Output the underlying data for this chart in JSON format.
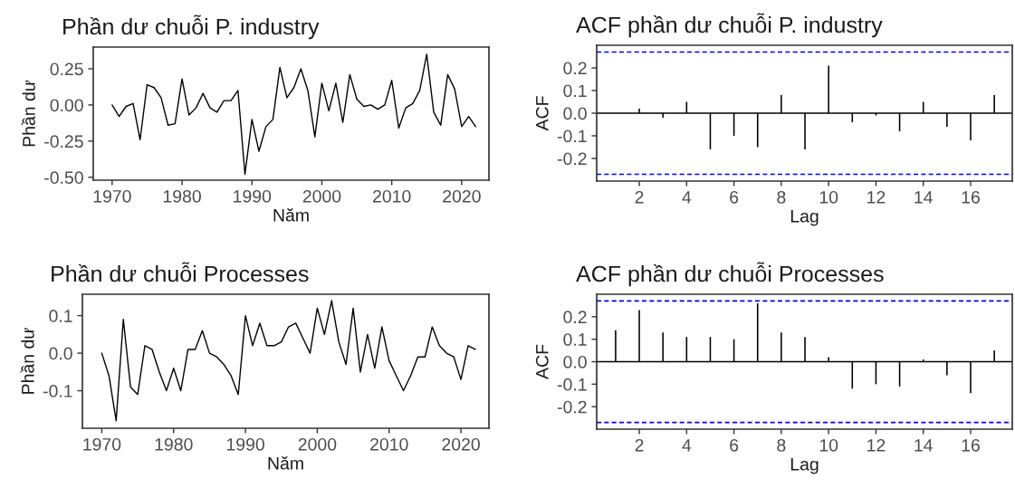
{
  "chart_data": [
    {
      "type": "line",
      "title": "Phần dư chuỗi P. industry",
      "xlabel": "Năm",
      "ylabel": "Phần dư",
      "xlim": [
        1967.3,
        2023.9
      ],
      "ylim": [
        -0.52,
        0.4
      ],
      "xticks": [
        1970,
        1980,
        1990,
        2000,
        2010,
        2020
      ],
      "yticks": [
        {
          "value": 0.25,
          "label": "0.25"
        },
        {
          "value": 0,
          "label": "0.00"
        },
        {
          "value": -0.25,
          "label": "-0.25"
        },
        {
          "value": -0.5,
          "label": "-0.50"
        }
      ],
      "grid": false,
      "legend": false,
      "x": [
        1970,
        1971,
        1972,
        1973,
        1974,
        1975,
        1976,
        1977,
        1978,
        1979,
        1980,
        1981,
        1982,
        1983,
        1984,
        1985,
        1986,
        1987,
        1988,
        1989,
        1990,
        1991,
        1992,
        1993,
        1994,
        1995,
        1996,
        1997,
        1998,
        1999,
        2000,
        2001,
        2002,
        2003,
        2004,
        2005,
        2006,
        2007,
        2008,
        2009,
        2010,
        2011,
        2012,
        2013,
        2014,
        2015,
        2016,
        2017,
        2018,
        2019,
        2020,
        2021,
        2022
      ],
      "series": [
        {
          "color": "#000000",
          "values": [
            0.0,
            -0.08,
            -0.01,
            0.01,
            -0.24,
            0.14,
            0.12,
            0.05,
            -0.14,
            -0.13,
            0.18,
            -0.07,
            -0.02,
            0.08,
            -0.02,
            -0.05,
            0.03,
            0.03,
            0.1,
            -0.48,
            -0.1,
            -0.32,
            -0.15,
            -0.1,
            0.26,
            0.05,
            0.12,
            0.25,
            0.1,
            -0.22,
            0.15,
            -0.04,
            0.15,
            -0.12,
            0.21,
            0.04,
            -0.01,
            0.0,
            -0.03,
            0.0,
            0.17,
            -0.16,
            -0.02,
            0.01,
            0.1,
            0.35,
            -0.05,
            -0.14,
            0.21,
            0.11,
            -0.15,
            -0.08,
            -0.15
          ]
        }
      ]
    },
    {
      "type": "bar",
      "title": "ACF phần dư chuỗi P. industry",
      "xlabel": "Lag",
      "ylabel": "ACF",
      "xlim": [
        0.2,
        17.76
      ],
      "ylim": [
        -0.3,
        0.3
      ],
      "xticks": [
        2,
        4,
        6,
        8,
        10,
        12,
        14,
        16
      ],
      "yticks": [
        {
          "value": 0.2,
          "label": "0.2"
        },
        {
          "value": 0.1,
          "label": "0.1"
        },
        {
          "value": 0,
          "label": "0.0"
        },
        {
          "value": -0.1,
          "label": "-0.1"
        },
        {
          "value": -0.2,
          "label": "-0.2"
        }
      ],
      "grid": false,
      "legend": false,
      "x": [
        1,
        2,
        3,
        4,
        5,
        6,
        7,
        8,
        9,
        10,
        11,
        12,
        13,
        14,
        15,
        16,
        17
      ],
      "series": [
        {
          "color": "#000000",
          "values": [
            0.0,
            0.02,
            -0.02,
            0.05,
            -0.16,
            -0.1,
            -0.15,
            0.08,
            -0.16,
            0.21,
            -0.04,
            -0.01,
            -0.08,
            0.05,
            -0.06,
            -0.12,
            0.08
          ]
        }
      ],
      "ref_lines": [
        {
          "axis": "y",
          "value": 0,
          "color": "#000000",
          "line_style": "solid"
        },
        {
          "axis": "y",
          "value": 0.27,
          "color": "#0000ff",
          "line_style": "dashed"
        },
        {
          "axis": "y",
          "value": -0.27,
          "color": "#0000ff",
          "line_style": "dashed"
        }
      ]
    },
    {
      "type": "line",
      "title": "Phần dư chuỗi Processes",
      "xlabel": "Năm",
      "ylabel": "Phần dư",
      "xlim": [
        1967.3,
        2023.9
      ],
      "ylim": [
        -0.2,
        0.157
      ],
      "xticks": [
        1970,
        1980,
        1990,
        2000,
        2010,
        2020
      ],
      "yticks": [
        {
          "value": 0.1,
          "label": "0.1"
        },
        {
          "value": 0,
          "label": "0.0"
        },
        {
          "value": -0.1,
          "label": "-0.1"
        }
      ],
      "grid": false,
      "legend": false,
      "x": [
        1970,
        1971,
        1972,
        1973,
        1974,
        1975,
        1976,
        1977,
        1978,
        1979,
        1980,
        1981,
        1982,
        1983,
        1984,
        1985,
        1986,
        1987,
        1988,
        1989,
        1990,
        1991,
        1992,
        1993,
        1994,
        1995,
        1996,
        1997,
        1998,
        1999,
        2000,
        2001,
        2002,
        2003,
        2004,
        2005,
        2006,
        2007,
        2008,
        2009,
        2010,
        2011,
        2012,
        2013,
        2014,
        2015,
        2016,
        2017,
        2018,
        2019,
        2020,
        2021,
        2022
      ],
      "series": [
        {
          "color": "#000000",
          "values": [
            0.0,
            -0.06,
            -0.18,
            0.09,
            -0.09,
            -0.11,
            0.02,
            0.01,
            -0.05,
            -0.1,
            -0.04,
            -0.1,
            0.01,
            0.01,
            0.06,
            0.0,
            -0.01,
            -0.03,
            -0.06,
            -0.11,
            0.1,
            0.02,
            0.08,
            0.02,
            0.02,
            0.03,
            0.07,
            0.08,
            0.04,
            0.0,
            0.12,
            0.05,
            0.14,
            0.03,
            -0.03,
            0.12,
            -0.05,
            0.05,
            -0.04,
            0.07,
            -0.02,
            -0.06,
            -0.1,
            -0.06,
            -0.01,
            -0.01,
            0.07,
            0.02,
            0.0,
            -0.01,
            -0.07,
            0.02,
            0.01
          ]
        }
      ]
    },
    {
      "type": "bar",
      "title": "ACF phần dư chuỗi Processes",
      "xlabel": "Lag",
      "ylabel": "ACF",
      "xlim": [
        0.2,
        17.76
      ],
      "ylim": [
        -0.3,
        0.3
      ],
      "xticks": [
        2,
        4,
        6,
        8,
        10,
        12,
        14,
        16
      ],
      "yticks": [
        {
          "value": 0.2,
          "label": "0.2"
        },
        {
          "value": 0.1,
          "label": "0.1"
        },
        {
          "value": 0,
          "label": "0.0"
        },
        {
          "value": -0.1,
          "label": "-0.1"
        },
        {
          "value": -0.2,
          "label": "-0.2"
        }
      ],
      "grid": false,
      "legend": false,
      "x": [
        1,
        2,
        3,
        4,
        5,
        6,
        7,
        8,
        9,
        10,
        11,
        12,
        13,
        14,
        15,
        16,
        17
      ],
      "series": [
        {
          "color": "#000000",
          "values": [
            0.14,
            0.23,
            0.13,
            0.11,
            0.11,
            0.1,
            0.26,
            0.13,
            0.11,
            0.02,
            -0.12,
            -0.1,
            -0.11,
            0.01,
            -0.06,
            -0.14,
            0.05
          ]
        }
      ],
      "ref_lines": [
        {
          "axis": "y",
          "value": 0,
          "color": "#000000",
          "line_style": "solid"
        },
        {
          "axis": "y",
          "value": 0.27,
          "color": "#0000ff",
          "line_style": "dashed"
        },
        {
          "axis": "y",
          "value": -0.27,
          "color": "#0000ff",
          "line_style": "dashed"
        }
      ]
    }
  ]
}
